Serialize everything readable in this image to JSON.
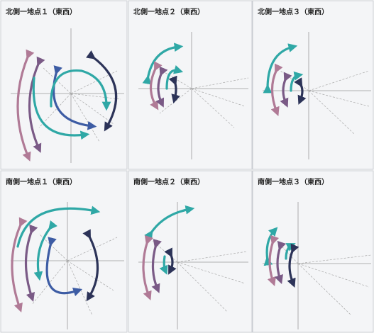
{
  "panels": [
    {
      "title": "北側一地点１（東西）"
    },
    {
      "title": "北側一地点２（東西）"
    },
    {
      "title": "北側一地点３（東西）"
    },
    {
      "title": "南側一地点１（東西）"
    },
    {
      "title": "南側一地点２（東西）"
    },
    {
      "title": "南側一地点３（東西）"
    }
  ]
}
